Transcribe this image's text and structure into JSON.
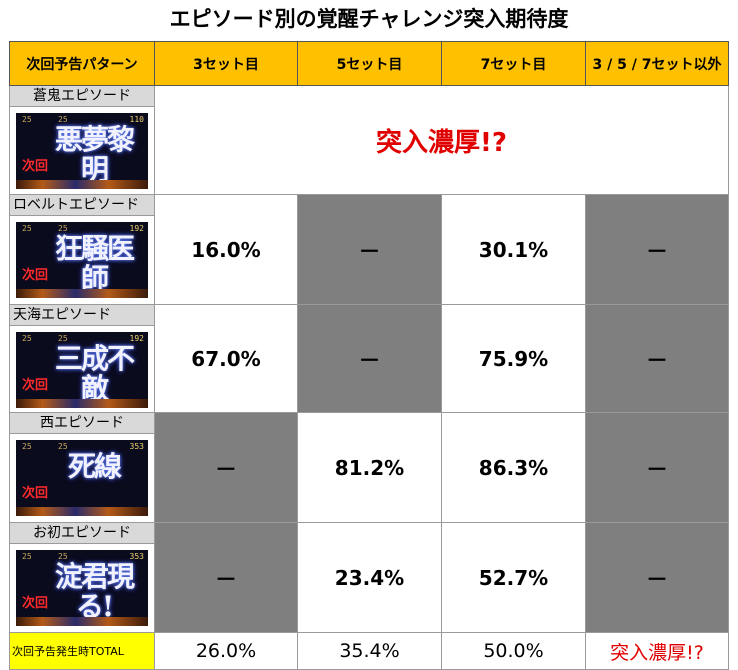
{
  "title": "エピソード別の覚醒チャレンジ突入期待度",
  "headers": [
    "次回予告パターン",
    "3セット目",
    "5セット目",
    "7セット目",
    "3 / 5 / 7セット以外"
  ],
  "rows": [
    {
      "name": "蒼鬼エピソード",
      "thumb": {
        "hud_left": "25",
        "hud_mid": "25",
        "hud_right": "110",
        "text": "悪夢黎明",
        "jikai": "次回"
      },
      "merged_value": "突入濃厚!?"
    },
    {
      "name": "ロベルトエピソード",
      "thumb": {
        "hud_left": "25",
        "hud_mid": "25",
        "hud_right": "192",
        "text": "狂騒医師",
        "jikai": "次回"
      },
      "cells": [
        "16.0%",
        "－",
        "30.1%",
        "－"
      ]
    },
    {
      "name": "天海エピソード",
      "thumb": {
        "hud_left": "25",
        "hud_mid": "25",
        "hud_right": "192",
        "text": "三成不敵",
        "jikai": "次回"
      },
      "cells": [
        "67.0%",
        "－",
        "75.9%",
        "－"
      ]
    },
    {
      "name": "西エピソード",
      "thumb": {
        "hud_left": "25",
        "hud_mid": "25",
        "hud_right": "353",
        "text": "死線",
        "jikai": "次回"
      },
      "cells": [
        "－",
        "81.2%",
        "86.3%",
        "－"
      ]
    },
    {
      "name": "お初エピソード",
      "thumb": {
        "hud_left": "25",
        "hud_mid": "25",
        "hud_right": "353",
        "text": "淀君現る!",
        "jikai": "次回"
      },
      "cells": [
        "－",
        "23.4%",
        "52.7%",
        "－"
      ]
    }
  ],
  "total": {
    "label": "次回予告発生時TOTAL",
    "cells": [
      "26.0%",
      "35.4%",
      "50.0%",
      "突入濃厚!?"
    ]
  }
}
